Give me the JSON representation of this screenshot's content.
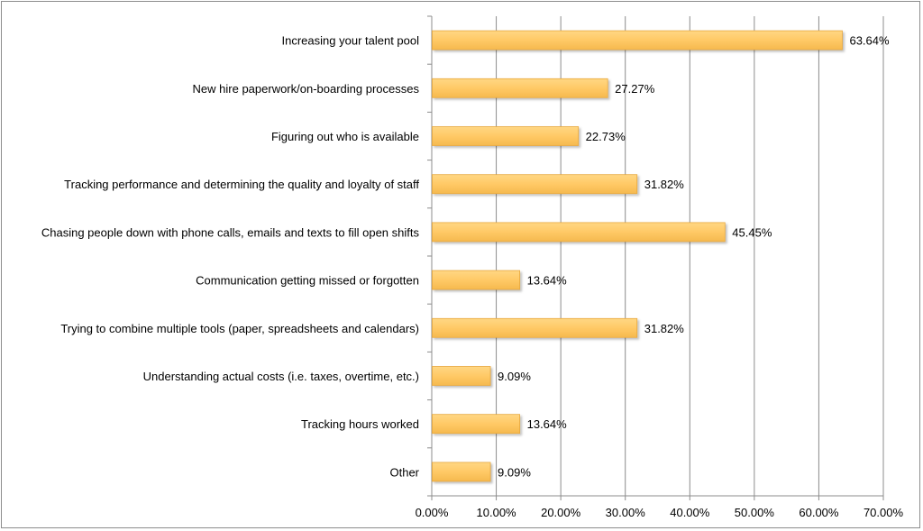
{
  "chart_data": {
    "type": "bar",
    "orientation": "horizontal",
    "categories": [
      "Increasing your talent pool",
      "New hire paperwork/on-boarding processes",
      "Figuring out who is available",
      "Tracking performance and determining the quality and loyalty of staff",
      "Chasing people down with phone calls, emails and texts to fill open shifts",
      "Communication getting missed or forgotten",
      "Trying to combine multiple tools (paper, spreadsheets and calendars)",
      "Understanding actual costs (i.e. taxes, overtime, etc.)",
      "Tracking hours worked",
      "Other"
    ],
    "values": [
      63.64,
      27.27,
      22.73,
      31.82,
      45.45,
      13.64,
      31.82,
      9.09,
      13.64,
      9.09
    ],
    "value_labels": [
      "63.64%",
      "27.27%",
      "22.73%",
      "31.82%",
      "45.45%",
      "13.64%",
      "31.82%",
      "9.09%",
      "13.64%",
      "9.09%"
    ],
    "xlim": [
      0,
      70
    ],
    "x_ticks": [
      0,
      10,
      20,
      30,
      40,
      50,
      60,
      70
    ],
    "x_tick_labels": [
      "0.00%",
      "10.00%",
      "20.00%",
      "30.00%",
      "40.00%",
      "50.00%",
      "60.00%",
      "70.00%"
    ],
    "grid": "vertical",
    "legend": "none",
    "bar_color": "#ffc966",
    "bar_edge_color": "#e8a83e",
    "grid_color": "#8c8c8c"
  }
}
